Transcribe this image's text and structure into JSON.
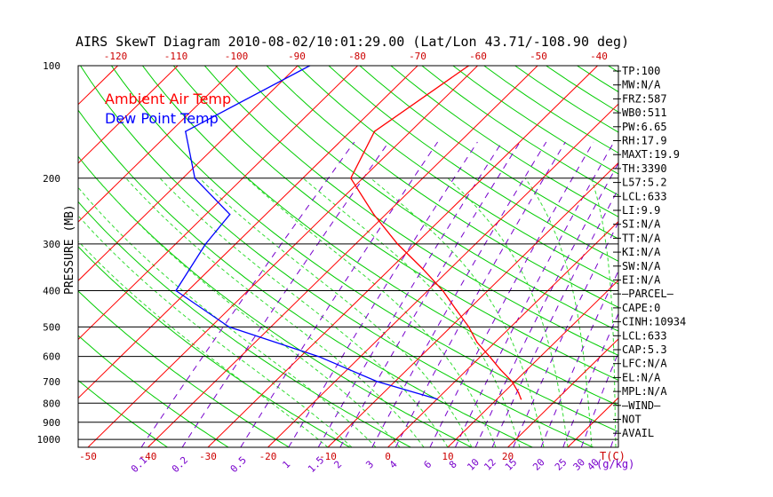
{
  "chart_data": {
    "type": "line",
    "title": "AIRS SkewT Diagram 2010-08-02/10:01:29.00 (Lat/Lon 43.71/-108.90 deg)",
    "ylabel": "PRESSURE (MB)",
    "x_unit_label": "T(C)",
    "mixing_unit_label": "(g/kg)",
    "pressure_ticks": [
      100,
      200,
      300,
      400,
      500,
      600,
      700,
      800,
      900,
      1000
    ],
    "bottom_temp_ticks": [
      -50,
      -40,
      -30,
      -20,
      -10,
      0,
      10,
      20
    ],
    "top_temp_ticks": [
      -120,
      -110,
      -100,
      -90,
      -80,
      -70,
      -60,
      -50,
      -40
    ],
    "mixing_ratio_labels": [
      {
        "text": "0.1",
        "value": 0.1
      },
      {
        "text": "0.2",
        "value": 0.2
      },
      {
        "text": "0.5",
        "value": 0.5
      },
      {
        "text": "1",
        "value": 1
      },
      {
        "text": "1.5",
        "value": 1.5
      },
      {
        "text": "2",
        "value": 2
      },
      {
        "text": "3",
        "value": 3
      },
      {
        "text": "4",
        "value": 4
      },
      {
        "text": "6",
        "value": 6
      },
      {
        "text": "8",
        "value": 8
      },
      {
        "text": "10",
        "value": 10
      },
      {
        "text": "12",
        "value": 12
      },
      {
        "text": "15",
        "value": 15
      },
      {
        "text": "20",
        "value": 20
      },
      {
        "text": "25",
        "value": 25
      },
      {
        "text": "30",
        "value": 30
      },
      {
        "text": "40",
        "value": 40
      }
    ],
    "legend": [
      {
        "name": "Ambient Air Temp",
        "color": "#ff0000"
      },
      {
        "name": "Dew Point Temp",
        "color": "#0000ff"
      }
    ],
    "series": [
      {
        "name": "Ambient Air Temp",
        "color": "#ff0000",
        "points": [
          {
            "p": 100,
            "t": -51.5
          },
          {
            "p": 150,
            "t": -56.0
          },
          {
            "p": 200,
            "t": -52.0
          },
          {
            "p": 250,
            "t": -42.0
          },
          {
            "p": 300,
            "t": -33.0
          },
          {
            "p": 350,
            "t": -24.5
          },
          {
            "p": 400,
            "t": -17.5
          },
          {
            "p": 450,
            "t": -12.0
          },
          {
            "p": 500,
            "t": -7.0
          },
          {
            "p": 550,
            "t": -3.0
          },
          {
            "p": 600,
            "t": 1.5
          },
          {
            "p": 650,
            "t": 5.5
          },
          {
            "p": 700,
            "t": 9.5
          },
          {
            "p": 750,
            "t": 12.5
          },
          {
            "p": 780,
            "t": 14.0
          }
        ]
      },
      {
        "name": "Dew Point Temp",
        "color": "#0000ff",
        "points": [
          {
            "p": 100,
            "t": -78.0
          },
          {
            "p": 150,
            "t": -87.5
          },
          {
            "p": 200,
            "t": -78.0
          },
          {
            "p": 250,
            "t": -66.0
          },
          {
            "p": 300,
            "t": -65.0
          },
          {
            "p": 400,
            "t": -62.0
          },
          {
            "p": 500,
            "t": -47.0
          },
          {
            "p": 600,
            "t": -27.0
          },
          {
            "p": 700,
            "t": -13.0
          },
          {
            "p": 780,
            "t": 0.0
          }
        ]
      }
    ],
    "side_panel": [
      "TP:100",
      "MW:N/A",
      "FRZ:587",
      "WB0:511",
      "PW:6.65",
      "RH:17.9",
      "MAXT:19.9",
      "TH:3390",
      "L57:5.2",
      "LCL:633",
      "LI:9.9",
      "SI:N/A",
      "TT:N/A",
      "KI:N/A",
      "SW:N/A",
      "EI:N/A",
      "—PARCEL—",
      "CAPE:0",
      "CINH:10934",
      "LCL:633",
      "CAP:5.3",
      "LFC:N/A",
      "EL:N/A",
      "MPL:N/A",
      "—WIND—",
      "NOT",
      "AVAIL"
    ],
    "colors": {
      "isobar": "#000000",
      "isotherm": "#ff0000",
      "dry_adiabat": "#00cc00",
      "moist_adiabat": "#33dd33",
      "mixing_ratio": "#7700cc",
      "title": "#000000",
      "tick_labels": "#cc0000",
      "pressure_labels": "#000000"
    }
  }
}
